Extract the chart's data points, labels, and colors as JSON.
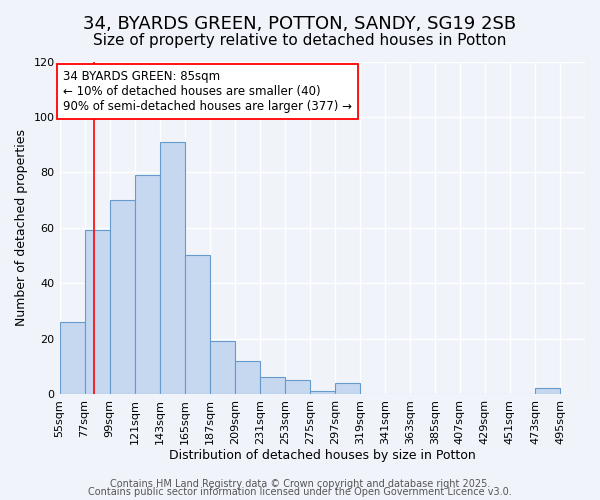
{
  "title1": "34, BYARDS GREEN, POTTON, SANDY, SG19 2SB",
  "title2": "Size of property relative to detached houses in Potton",
  "xlabel": "Distribution of detached houses by size in Potton",
  "ylabel": "Number of detached properties",
  "bar_values": [
    26,
    59,
    70,
    79,
    91,
    50,
    19,
    12,
    6,
    5,
    1,
    4,
    0,
    0,
    0,
    0,
    0,
    0,
    0,
    2
  ],
  "bin_labels": [
    "55sqm",
    "77sqm",
    "99sqm",
    "121sqm",
    "143sqm",
    "165sqm",
    "187sqm",
    "209sqm",
    "231sqm",
    "253sqm",
    "275sqm",
    "297sqm",
    "319sqm",
    "341sqm",
    "363sqm",
    "385sqm",
    "407sqm",
    "429sqm",
    "451sqm",
    "473sqm",
    "495sqm"
  ],
  "bin_edges": [
    55,
    77,
    99,
    121,
    143,
    165,
    187,
    209,
    231,
    253,
    275,
    297,
    319,
    341,
    363,
    385,
    407,
    429,
    451,
    473,
    495
  ],
  "bar_color": "#c5d8f0",
  "bar_edge_color": "#6699cc",
  "red_line_x": 85,
  "ylim": [
    0,
    120
  ],
  "yticks": [
    0,
    20,
    40,
    60,
    80,
    100,
    120
  ],
  "annotation_title": "34 BYARDS GREEN: 85sqm",
  "annotation_line1": "← 10% of detached houses are smaller (40)",
  "annotation_line2": "90% of semi-detached houses are larger (377) →",
  "footer1": "Contains HM Land Registry data © Crown copyright and database right 2025.",
  "footer2": "Contains public sector information licensed under the Open Government Licence v3.0.",
  "background_color": "#f0f4fa",
  "grid_color": "#ffffff",
  "title_fontsize": 13,
  "subtitle_fontsize": 11,
  "axis_label_fontsize": 9,
  "tick_fontsize": 8,
  "annotation_fontsize": 8.5,
  "footer_fontsize": 7
}
